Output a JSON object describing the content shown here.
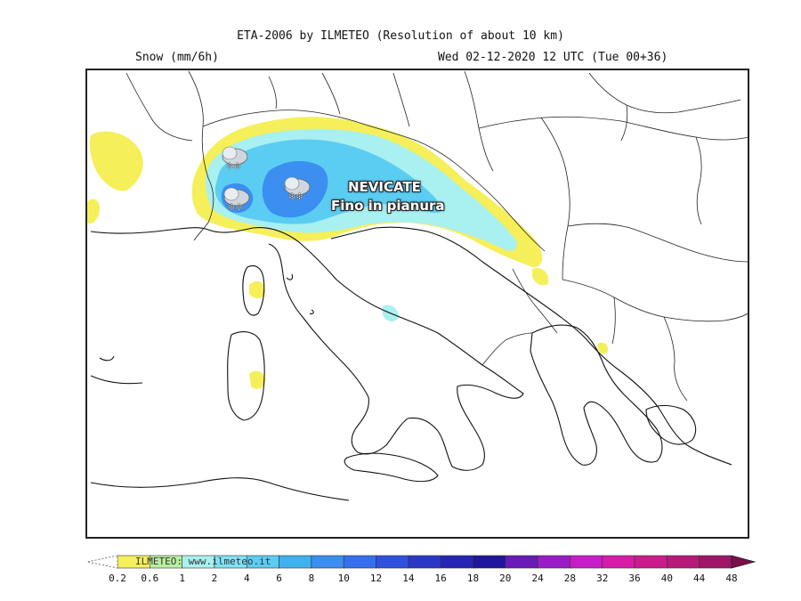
{
  "header": {
    "title": "ETA-2006 by ILMETEO (Resolution of about 10 km)",
    "subtitle_left": "Snow (mm/6h)",
    "subtitle_right": "Wed 02-12-2020 12 UTC (Tue 00+36)"
  },
  "map": {
    "annotation_line1": "NEVICATE",
    "annotation_line2": "Fino in pianura",
    "icons": [
      "snow-cloud-icon",
      "snow-cloud-icon",
      "snow-cloud-icon"
    ]
  },
  "legend": {
    "watermark": "ILMETEO: www.ilmeteo.it",
    "ticks": [
      "0.2",
      "0.6",
      "1",
      "2",
      "4",
      "6",
      "8",
      "10",
      "12",
      "14",
      "16",
      "18",
      "20",
      "24",
      "28",
      "32",
      "36",
      "40",
      "44",
      "48"
    ],
    "colors": [
      "#f5ef5a",
      "#b9f0a0",
      "#a9f0f0",
      "#7fe3f5",
      "#5ccdf2",
      "#3fb1ef",
      "#3b8ff0",
      "#356ff0",
      "#2f50e0",
      "#2a38c8",
      "#2525b5",
      "#20159c",
      "#6a1ab8",
      "#9a1cc8",
      "#c81cc8",
      "#d81aa8",
      "#cc1a8c",
      "#b8187a",
      "#a01568",
      "#881256"
    ]
  }
}
